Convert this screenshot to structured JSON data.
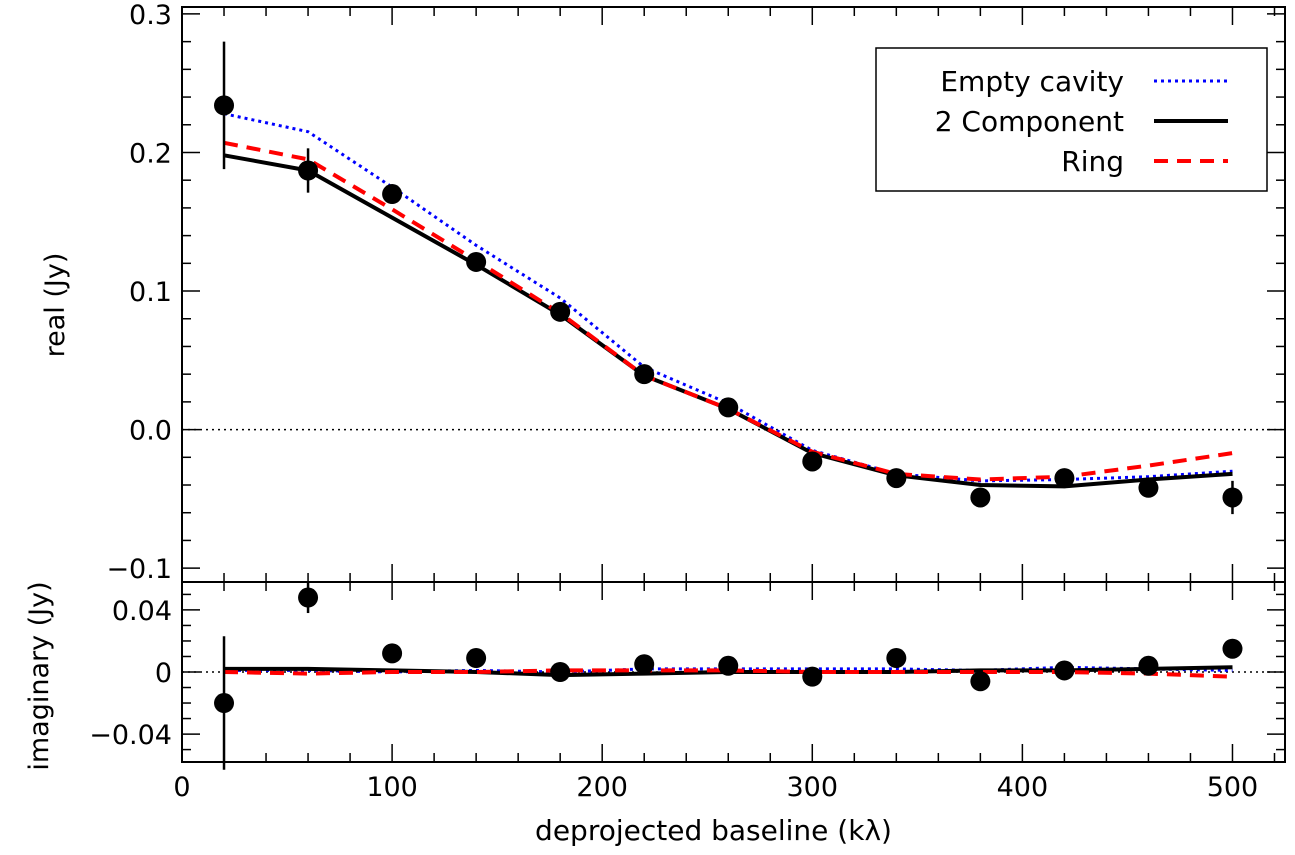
{
  "chart_data": [
    {
      "type": "line",
      "panel": "real",
      "ylabel": "real (Jy)",
      "xlabel": "",
      "xlim": [
        0,
        525
      ],
      "ylim": [
        -0.11,
        0.305
      ],
      "x_ticks": [
        0,
        100,
        200,
        300,
        400,
        500
      ],
      "y_ticks": [
        -0.1,
        0.0,
        0.1,
        0.2,
        0.3
      ],
      "y_tick_labels": [
        "−0.1",
        "0.0",
        "0.1",
        "0.2",
        "0.3"
      ],
      "zero_line": true,
      "legend_position": "top-right",
      "legend": [
        {
          "name": "Empty cavity",
          "color": "#0000ff",
          "style": "dotted"
        },
        {
          "name": "2 Component",
          "color": "#000000",
          "style": "solid"
        },
        {
          "name": "Ring",
          "color": "#ff0000",
          "style": "dashed"
        }
      ],
      "observations": {
        "x": [
          20,
          60,
          100,
          140,
          180,
          220,
          260,
          300,
          340,
          380,
          420,
          460,
          500
        ],
        "y": [
          0.234,
          0.187,
          0.17,
          0.121,
          0.085,
          0.04,
          0.016,
          -0.023,
          -0.035,
          -0.049,
          -0.035,
          -0.042,
          -0.049
        ],
        "yerr": [
          0.046,
          0.016,
          0.0,
          0.0,
          0.0,
          0.0,
          0.0,
          0.0,
          0.0,
          0.0,
          0.0,
          0.0,
          0.012
        ]
      },
      "series": [
        {
          "name": "Empty cavity",
          "color": "#0000ff",
          "style": "dotted",
          "x": [
            20,
            60,
            100,
            140,
            180,
            220,
            260,
            300,
            340,
            380,
            420,
            460,
            500
          ],
          "y": [
            0.228,
            0.215,
            0.175,
            0.133,
            0.095,
            0.045,
            0.019,
            -0.015,
            -0.032,
            -0.037,
            -0.036,
            -0.034,
            -0.03
          ]
        },
        {
          "name": "2 Component",
          "color": "#000000",
          "style": "solid",
          "x": [
            20,
            60,
            100,
            140,
            180,
            220,
            260,
            300,
            340,
            380,
            420,
            460,
            500
          ],
          "y": [
            0.198,
            0.187,
            0.153,
            0.119,
            0.083,
            0.039,
            0.015,
            -0.017,
            -0.033,
            -0.04,
            -0.041,
            -0.036,
            -0.032
          ]
        },
        {
          "name": "Ring",
          "color": "#ff0000",
          "style": "dashed",
          "x": [
            20,
            60,
            100,
            140,
            180,
            220,
            260,
            300,
            340,
            380,
            420,
            460,
            500
          ],
          "y": [
            0.207,
            0.195,
            0.159,
            0.122,
            0.084,
            0.039,
            0.015,
            -0.016,
            -0.032,
            -0.036,
            -0.034,
            -0.026,
            -0.017
          ]
        }
      ]
    },
    {
      "type": "line",
      "panel": "imaginary",
      "ylabel": "imaginary (Jy)",
      "xlabel": "deprojected baseline (kλ)",
      "xlim": [
        0,
        525
      ],
      "ylim": [
        -0.058,
        0.058
      ],
      "x_ticks": [
        0,
        100,
        200,
        300,
        400,
        500
      ],
      "x_tick_labels": [
        "0",
        "100",
        "200",
        "300",
        "400",
        "500"
      ],
      "y_ticks": [
        -0.04,
        0,
        0.04
      ],
      "y_tick_labels": [
        "−0.04",
        "0",
        "0.04"
      ],
      "zero_line": true,
      "observations": {
        "x": [
          20,
          60,
          100,
          140,
          180,
          220,
          260,
          300,
          340,
          380,
          420,
          460,
          500
        ],
        "y": [
          -0.02,
          0.048,
          0.012,
          0.009,
          0.0,
          0.005,
          0.004,
          -0.003,
          0.009,
          -0.006,
          0.001,
          0.004,
          0.015
        ],
        "yerr": [
          0.043,
          0.01,
          0.0,
          0.0,
          0.0,
          0.0,
          0.0,
          0.0,
          0.0,
          0.0,
          0.0,
          0.0,
          0.0
        ]
      },
      "series": [
        {
          "name": "Empty cavity",
          "color": "#0000ff",
          "style": "dotted",
          "x": [
            20,
            60,
            100,
            140,
            180,
            220,
            260,
            300,
            340,
            380,
            420,
            460,
            500
          ],
          "y": [
            0.001,
            0.001,
            0.0,
            0.001,
            0.0,
            0.002,
            0.002,
            0.002,
            0.002,
            0.001,
            0.003,
            0.002,
            0.001
          ]
        },
        {
          "name": "2 Component",
          "color": "#000000",
          "style": "solid",
          "x": [
            20,
            60,
            100,
            140,
            180,
            220,
            260,
            300,
            340,
            380,
            420,
            460,
            500
          ],
          "y": [
            0.002,
            0.002,
            0.001,
            0.0,
            -0.002,
            -0.001,
            0.0,
            0.0,
            0.0,
            0.001,
            0.001,
            0.002,
            0.003
          ]
        },
        {
          "name": "Ring",
          "color": "#ff0000",
          "style": "dashed",
          "x": [
            20,
            60,
            100,
            140,
            180,
            220,
            260,
            300,
            340,
            380,
            420,
            460,
            500
          ],
          "y": [
            0.0,
            -0.001,
            0.0,
            0.0,
            0.001,
            0.001,
            0.001,
            0.0,
            0.0,
            0.0,
            0.0,
            -0.001,
            -0.003
          ]
        }
      ]
    }
  ]
}
